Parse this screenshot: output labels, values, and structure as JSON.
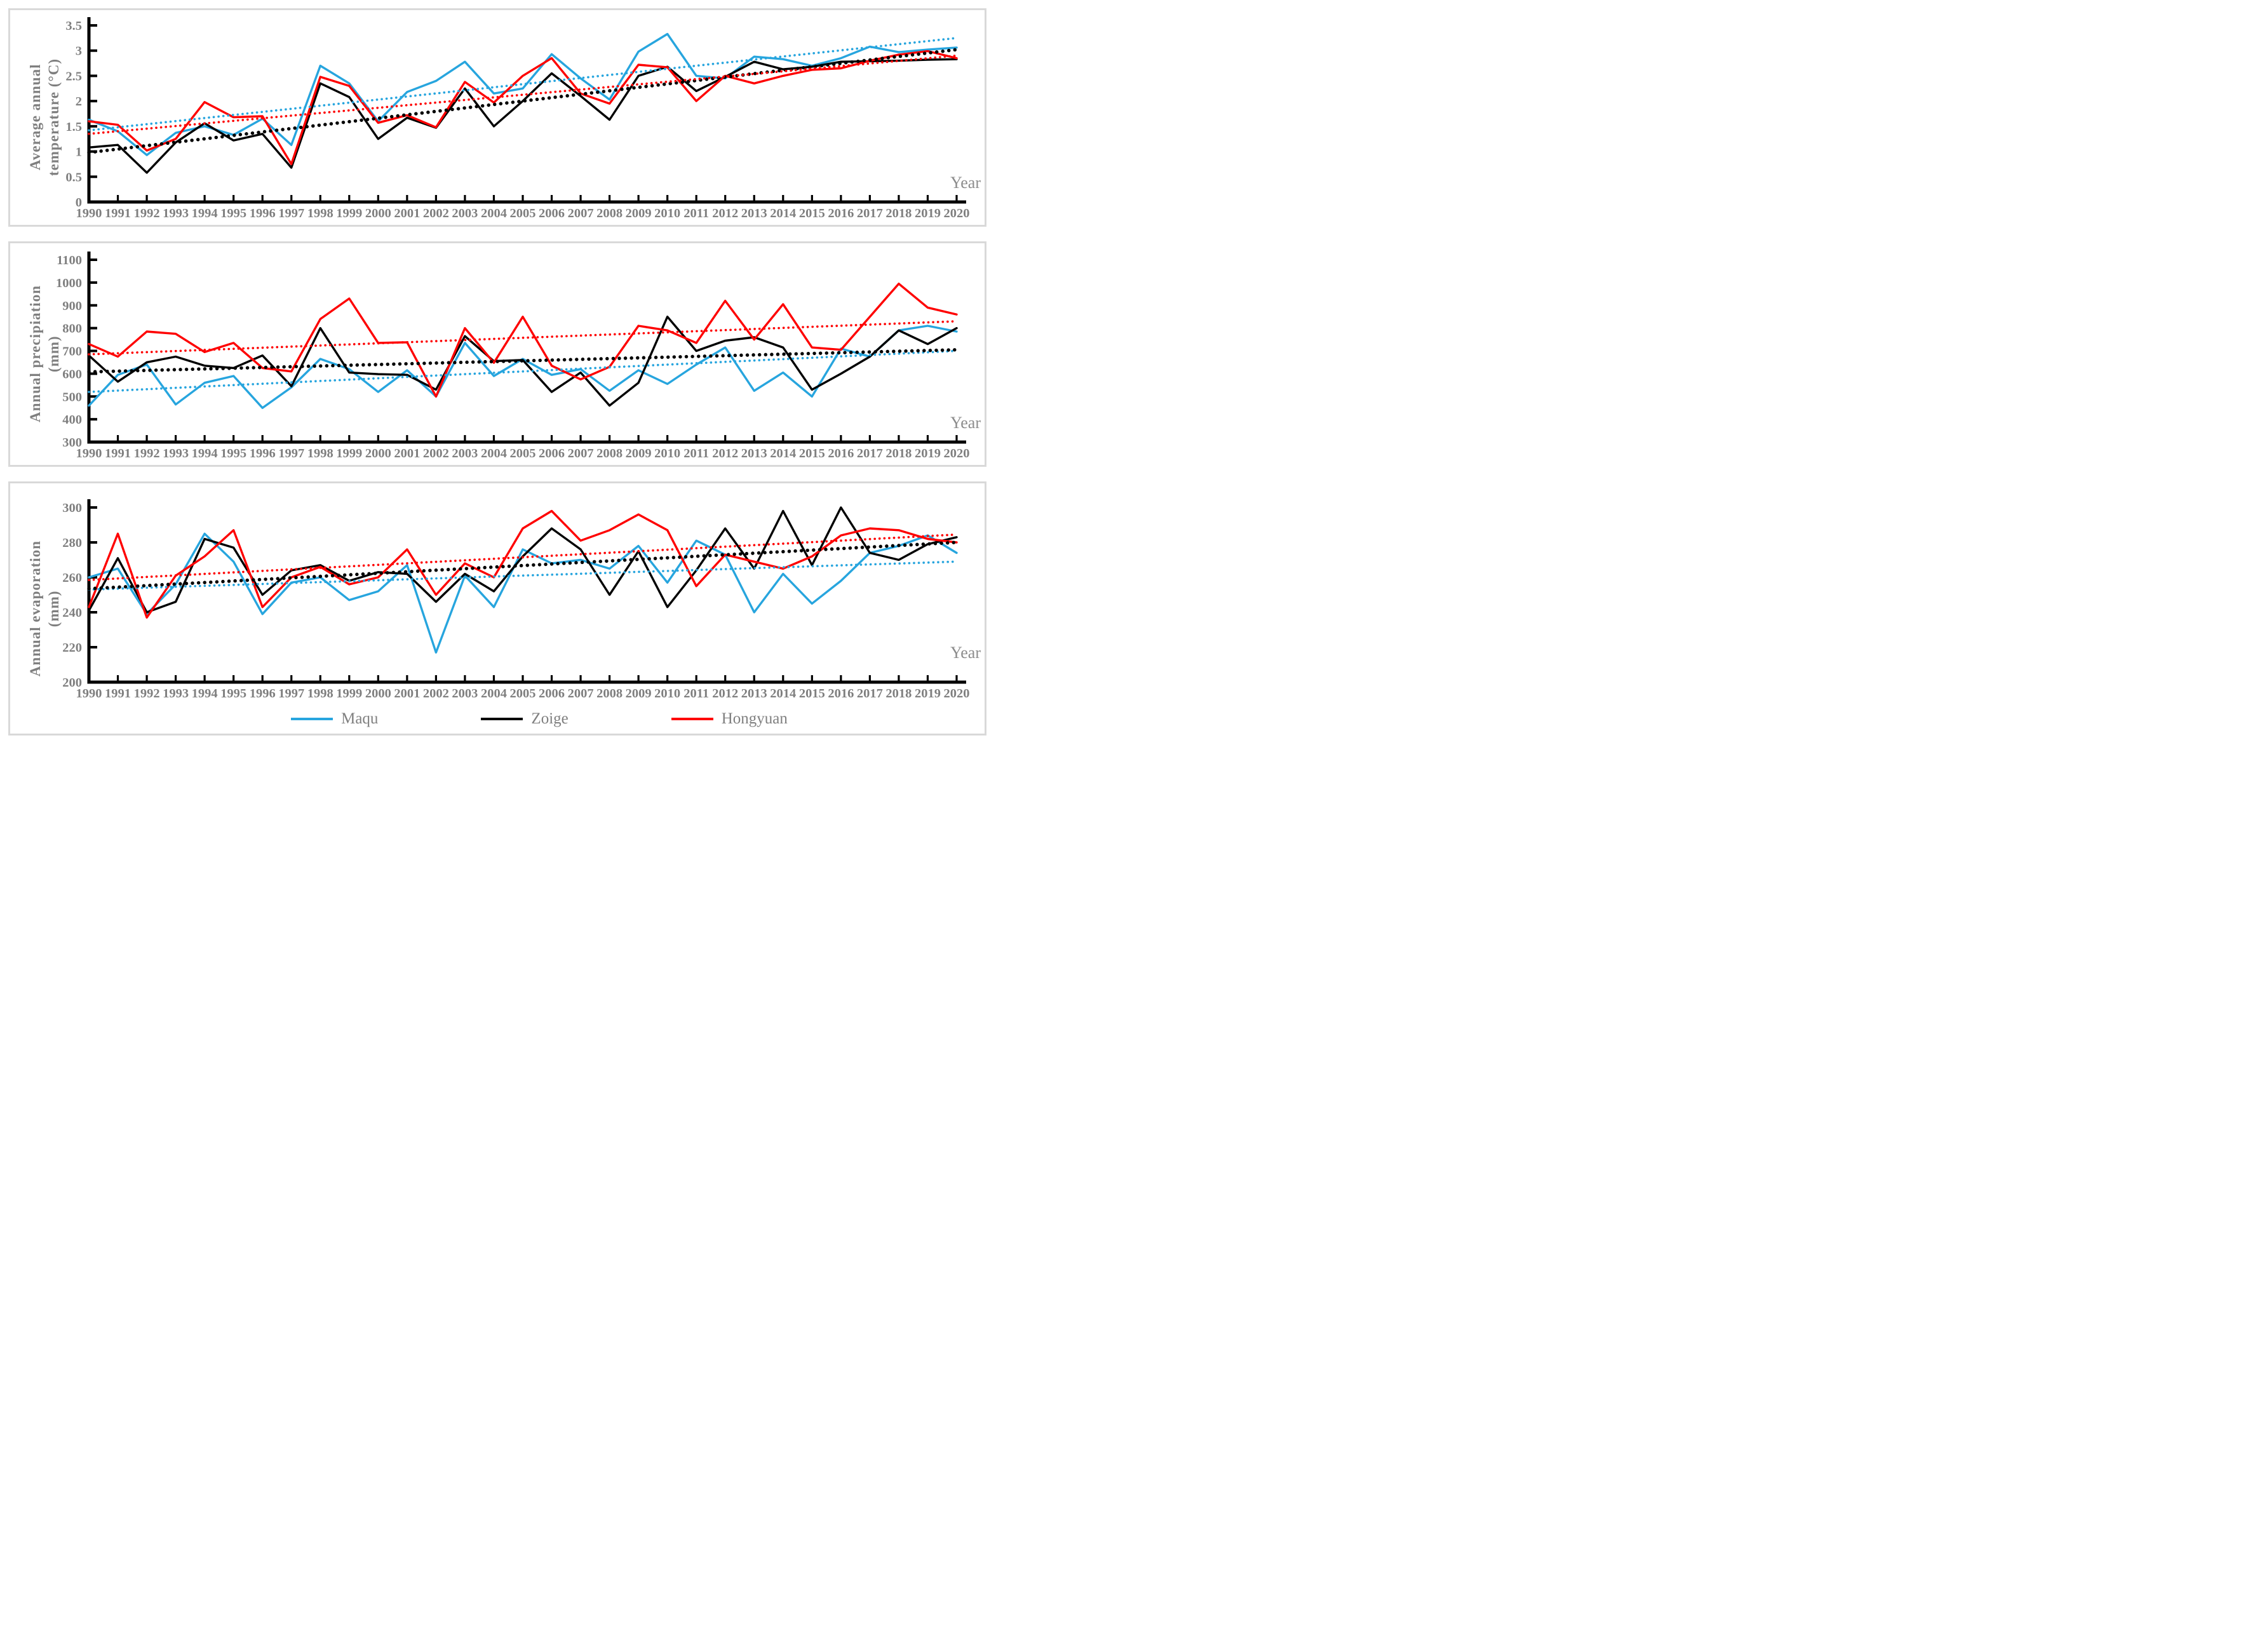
{
  "figure": {
    "description": "Three stacked line charts of annual climate records for three stations, 1990-2020, each with linear dotted trend lines",
    "x_axis_label": "Year"
  },
  "colors": {
    "maqu": "#27a5de",
    "zoige": "#000000",
    "hongyuan": "#fe0000",
    "axis": "#000000",
    "tick_text": "#7f7f7f",
    "panel_border": "#d9d9d9"
  },
  "years": [
    1990,
    1991,
    1992,
    1993,
    1994,
    1995,
    1996,
    1997,
    1998,
    1999,
    2000,
    2001,
    2002,
    2003,
    2004,
    2005,
    2006,
    2007,
    2008,
    2009,
    2010,
    2011,
    2012,
    2013,
    2014,
    2015,
    2016,
    2017,
    2018,
    2019,
    2020
  ],
  "legend": {
    "items": [
      {
        "label": "Maqu",
        "color_key": "maqu"
      },
      {
        "label": "Zoige",
        "color_key": "zoige"
      },
      {
        "label": "Hongyuan",
        "color_key": "hongyuan"
      }
    ]
  },
  "chart_data": [
    {
      "type": "line",
      "title": "",
      "xlabel": "Year",
      "ylabel": "Average annual temperature (°C)",
      "ylabel_lines": [
        "Average annual",
        "temperature (°C)"
      ],
      "ylim": [
        0,
        3.5
      ],
      "yticks": [
        0,
        0.5,
        1,
        1.5,
        2,
        2.5,
        3,
        3.5
      ],
      "grid": false,
      "series": [
        {
          "name": "Maqu",
          "color_key": "maqu",
          "values": [
            1.63,
            1.4,
            0.93,
            1.37,
            1.5,
            1.33,
            1.65,
            1.13,
            2.7,
            2.35,
            1.6,
            2.18,
            2.4,
            2.78,
            2.15,
            2.25,
            2.93,
            2.45,
            2.03,
            2.98,
            3.33,
            2.5,
            2.45,
            2.88,
            2.83,
            2.7,
            2.85,
            3.08,
            2.97,
            3.02,
            3.06
          ]
        },
        {
          "name": "Zoige",
          "color_key": "zoige",
          "values": [
            1.08,
            1.13,
            0.58,
            1.18,
            1.56,
            1.22,
            1.35,
            0.68,
            2.35,
            2.08,
            1.25,
            1.67,
            1.47,
            2.25,
            1.5,
            2.0,
            2.55,
            2.1,
            1.63,
            2.5,
            2.68,
            2.2,
            2.48,
            2.78,
            2.63,
            2.68,
            2.78,
            2.79,
            2.8,
            2.82,
            2.83
          ]
        },
        {
          "name": "Hongyuan",
          "color_key": "hongyuan",
          "values": [
            1.6,
            1.53,
            1.02,
            1.25,
            1.98,
            1.68,
            1.7,
            0.75,
            2.48,
            2.3,
            1.57,
            1.72,
            1.48,
            2.38,
            1.97,
            2.5,
            2.85,
            2.15,
            1.95,
            2.72,
            2.67,
            2.0,
            2.5,
            2.35,
            2.5,
            2.62,
            2.65,
            2.8,
            2.92,
            2.99,
            2.85
          ]
        }
      ],
      "trendlines": [
        {
          "name": "Maqu linear trend",
          "color_key": "maqu",
          "start": 1.42,
          "end": 3.25
        },
        {
          "name": "Zoige linear trend",
          "color_key": "zoige",
          "start": 0.98,
          "end": 3.02
        },
        {
          "name": "Hongyuan linear trend",
          "color_key": "hongyuan",
          "start": 1.35,
          "end": 2.9
        }
      ]
    },
    {
      "type": "line",
      "title": "",
      "xlabel": "Year",
      "ylabel": "Annual precipiation (mm)",
      "ylabel_lines": [
        "Annual precipiation",
        "(mm)"
      ],
      "ylim": [
        300,
        1100
      ],
      "yticks": [
        300,
        400,
        500,
        600,
        700,
        800,
        900,
        1000,
        1100
      ],
      "grid": false,
      "series": [
        {
          "name": "Maqu",
          "color_key": "maqu",
          "values": [
            460,
            595,
            640,
            465,
            560,
            590,
            450,
            540,
            665,
            620,
            520,
            615,
            500,
            735,
            590,
            665,
            595,
            620,
            525,
            615,
            555,
            640,
            715,
            525,
            605,
            500,
            710,
            675,
            790,
            810,
            785
          ]
        },
        {
          "name": "Zoige",
          "color_key": "zoige",
          "values": [
            680,
            565,
            650,
            675,
            635,
            625,
            680,
            545,
            800,
            605,
            598,
            595,
            530,
            765,
            655,
            660,
            520,
            605,
            460,
            560,
            850,
            700,
            745,
            760,
            715,
            530,
            600,
            675,
            790,
            730,
            800
          ]
        },
        {
          "name": "Hongyuan",
          "color_key": "hongyuan",
          "values": [
            730,
            675,
            785,
            775,
            695,
            735,
            625,
            610,
            840,
            930,
            735,
            738,
            500,
            800,
            648,
            850,
            635,
            575,
            630,
            810,
            790,
            735,
            920,
            750,
            905,
            715,
            705,
            850,
            995,
            890,
            860
          ]
        }
      ],
      "trendlines": [
        {
          "name": "Maqu linear trend",
          "color_key": "maqu",
          "start": 520,
          "end": 700
        },
        {
          "name": "Zoige linear trend",
          "color_key": "zoige",
          "start": 608,
          "end": 705
        },
        {
          "name": "Hongyuan linear trend",
          "color_key": "hongyuan",
          "start": 685,
          "end": 830
        }
      ]
    },
    {
      "type": "line",
      "title": "",
      "xlabel": "Year",
      "ylabel": "Annual evaporation (mm)",
      "ylabel_lines": [
        "Annual evaporation",
        "(mm)"
      ],
      "ylim": [
        200,
        300
      ],
      "yticks": [
        200,
        220,
        240,
        260,
        280,
        300
      ],
      "grid": false,
      "series": [
        {
          "name": "Maqu",
          "color_key": "maqu",
          "values": [
            260,
            265,
            239,
            256,
            285,
            269,
            239,
            257,
            260,
            247,
            252,
            267,
            217,
            261,
            243,
            276,
            268,
            270,
            265,
            278,
            257,
            281,
            273,
            240,
            262,
            245,
            258,
            274,
            278,
            284,
            274
          ]
        },
        {
          "name": "Zoige",
          "color_key": "zoige",
          "values": [
            241,
            271,
            240,
            246,
            282,
            277,
            250,
            264,
            267,
            258,
            263,
            262,
            246,
            262,
            252,
            272,
            288,
            276,
            250,
            275,
            243,
            264,
            288,
            265,
            298,
            267,
            300,
            274,
            270,
            279,
            283
          ]
        },
        {
          "name": "Hongyuan",
          "color_key": "hongyuan",
          "values": [
            243,
            285,
            237,
            261,
            272,
            287,
            243,
            260,
            266,
            256,
            260,
            276,
            250,
            268,
            260,
            288,
            298,
            281,
            287,
            296,
            287,
            255,
            273,
            269,
            265,
            272,
            284,
            288,
            287,
            282,
            280
          ]
        }
      ],
      "trendlines": [
        {
          "name": "Maqu linear trend",
          "color_key": "maqu",
          "start": 253,
          "end": 269
        },
        {
          "name": "Zoige linear trend",
          "color_key": "zoige",
          "start": 253.5,
          "end": 280
        },
        {
          "name": "Hongyuan linear trend",
          "color_key": "hongyuan",
          "start": 258.5,
          "end": 284.5
        }
      ]
    }
  ]
}
